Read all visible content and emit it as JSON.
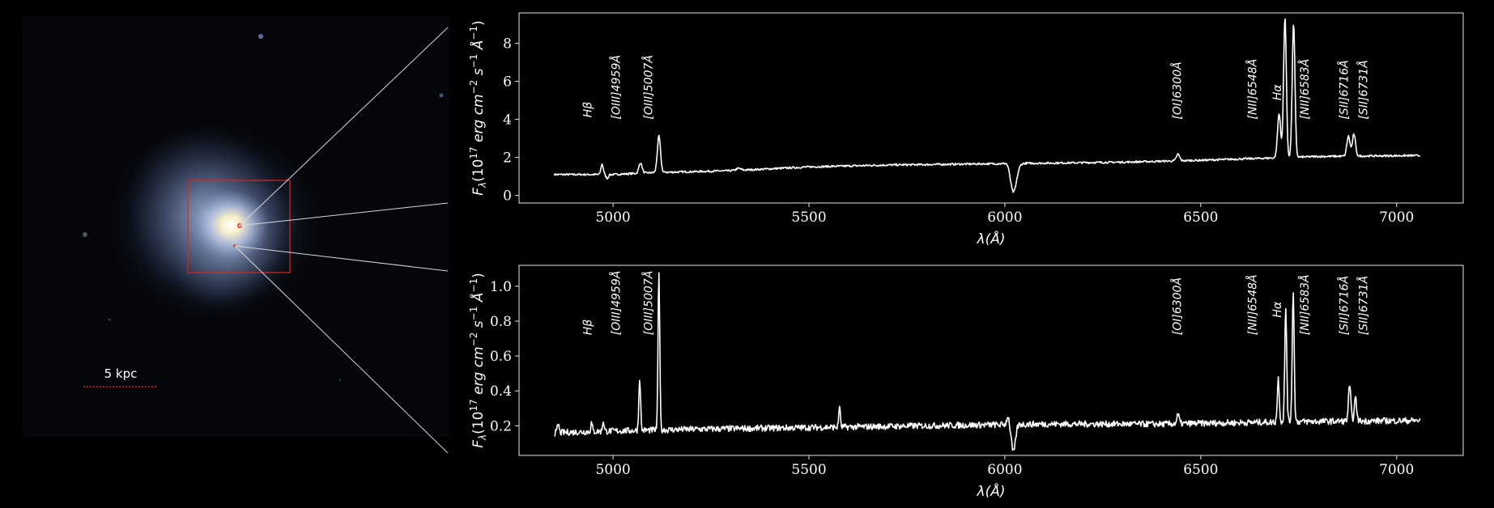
{
  "image_panel": {
    "scale_bar_label": "5 kpc",
    "marker_color": "#e0241c"
  },
  "chart_data": [
    {
      "type": "line",
      "xlabel": "λ(Å)",
      "ylabel_main": "F",
      "ylabel_sub": "λ",
      "ylabel_rest": "(10",
      "ylabel_exp": "17",
      "ylabel_units": " erg cm",
      "ylabel_units_exp1": "−2",
      "ylabel_units2": " s",
      "ylabel_units_exp2": "−1",
      "ylabel_units3": " Å",
      "ylabel_units_exp3": "−1",
      "ylabel_close": ")",
      "xlim": [
        4760,
        7170
      ],
      "ylim": [
        -0.4,
        9.6
      ],
      "xticks": [
        5000,
        5500,
        6000,
        6500,
        7000
      ],
      "yticks": [
        0,
        2,
        4,
        6,
        8
      ],
      "ytick_labels": [
        "0",
        "2",
        "4",
        "6",
        "8"
      ],
      "grid": false,
      "line_labels": [
        {
          "label": "Hβ",
          "x": 4945,
          "y": 4.1
        },
        {
          "label": "[OIII]4959Å",
          "x": 5017,
          "y": 4.0
        },
        {
          "label": "[OIII]5007Å",
          "x": 5100,
          "y": 4.0
        },
        {
          "label": "[OI]6300Å",
          "x": 6450,
          "y": 4.0
        },
        {
          "label": "[NII]6548Å",
          "x": 6642,
          "y": 4.0
        },
        {
          "label": "Hα",
          "x": 6705,
          "y": 5.0
        },
        {
          "label": "[NII]6583Å",
          "x": 6775,
          "y": 4.0
        },
        {
          "label": "[SII]6716Å",
          "x": 6875,
          "y": 4.0
        },
        {
          "label": "[SII]6731Å",
          "x": 6925,
          "y": 4.0
        }
      ],
      "series": [
        {
          "color": "#ffffff",
          "baseline": [
            [
              4850,
              1.1
            ],
            [
              5000,
              1.1
            ],
            [
              5100,
              1.2
            ],
            [
              5300,
              1.3
            ],
            [
              5500,
              1.5
            ],
            [
              5700,
              1.6
            ],
            [
              5900,
              1.65
            ],
            [
              6100,
              1.7
            ],
            [
              6300,
              1.75
            ],
            [
              6500,
              1.85
            ],
            [
              6650,
              1.95
            ],
            [
              6800,
              2.05
            ],
            [
              7060,
              2.1
            ]
          ],
          "features": [
            {
              "x": 4972,
              "peak": 0.55,
              "width": 3
            },
            {
              "x": 4985,
              "peak": -0.2,
              "width": 3
            },
            {
              "x": 5070,
              "peak": 0.55,
              "width": 4
            },
            {
              "x": 5117,
              "peak": 1.9,
              "width": 4
            },
            {
              "x": 5320,
              "peak": 0.1,
              "width": 6
            },
            {
              "x": 6022,
              "peak": -1.5,
              "width": 8
            },
            {
              "x": 6008,
              "peak": 0.15,
              "width": 5
            },
            {
              "x": 6442,
              "peak": 0.35,
              "width": 4
            },
            {
              "x": 6700,
              "peak": 2.3,
              "width": 4
            },
            {
              "x": 6715,
              "peak": 7.4,
              "width": 3.5
            },
            {
              "x": 6737,
              "peak": 7.0,
              "width": 3.5
            },
            {
              "x": 6877,
              "peak": 1.05,
              "width": 4
            },
            {
              "x": 6891,
              "peak": 1.15,
              "width": 4
            }
          ],
          "noise": 0.05
        }
      ]
    },
    {
      "type": "line",
      "xlabel": "λ(Å)",
      "ylabel_main": "F",
      "ylabel_sub": "λ",
      "ylabel_rest": "(10",
      "ylabel_exp": "17",
      "ylabel_units": " erg cm",
      "ylabel_units_exp1": "−2",
      "ylabel_units2": " s",
      "ylabel_units_exp2": "−1",
      "ylabel_units3": " Å",
      "ylabel_units_exp3": "−1",
      "ylabel_close": ")",
      "xlim": [
        4760,
        7170
      ],
      "ylim": [
        0.03,
        1.12
      ],
      "xticks": [
        5000,
        5500,
        6000,
        6500,
        7000
      ],
      "yticks": [
        0.2,
        0.4,
        0.6,
        0.8,
        1.0
      ],
      "ytick_labels": [
        "0.2",
        "0.4",
        "0.6",
        "0.8",
        "1.0"
      ],
      "grid": false,
      "line_labels": [
        {
          "label": "Hβ",
          "x": 4945,
          "y": 0.72
        },
        {
          "label": "[OIII]4959Å",
          "x": 5017,
          "y": 0.72
        },
        {
          "label": "[OIII]5007Å",
          "x": 5100,
          "y": 0.72
        },
        {
          "label": "[OI]6300Å",
          "x": 6450,
          "y": 0.72
        },
        {
          "label": "[NII]6548Å",
          "x": 6642,
          "y": 0.72
        },
        {
          "label": "Hα",
          "x": 6705,
          "y": 0.82
        },
        {
          "label": "[NII]6583Å",
          "x": 6775,
          "y": 0.72
        },
        {
          "label": "[SII]6716Å",
          "x": 6875,
          "y": 0.72
        },
        {
          "label": "[SII]6731Å",
          "x": 6925,
          "y": 0.72
        }
      ],
      "series": [
        {
          "color": "#ffffff",
          "baseline": [
            [
              4850,
              0.16
            ],
            [
              5000,
              0.17
            ],
            [
              5200,
              0.18
            ],
            [
              5500,
              0.19
            ],
            [
              5800,
              0.2
            ],
            [
              6100,
              0.21
            ],
            [
              6400,
              0.21
            ],
            [
              6650,
              0.22
            ],
            [
              6800,
              0.225
            ],
            [
              7060,
              0.23
            ]
          ],
          "features": [
            {
              "x": 4860,
              "peak": 0.05,
              "width": 2
            },
            {
              "x": 4945,
              "peak": 0.05,
              "width": 2
            },
            {
              "x": 4975,
              "peak": 0.06,
              "width": 2
            },
            {
              "x": 5068,
              "peak": 0.3,
              "width": 2.2
            },
            {
              "x": 5117,
              "peak": 0.9,
              "width": 2.2
            },
            {
              "x": 5578,
              "peak": 0.13,
              "width": 1.8
            },
            {
              "x": 6022,
              "peak": -0.16,
              "width": 5
            },
            {
              "x": 6008,
              "peak": 0.05,
              "width": 3
            },
            {
              "x": 6442,
              "peak": 0.05,
              "width": 3
            },
            {
              "x": 6698,
              "peak": 0.25,
              "width": 2.5
            },
            {
              "x": 6717,
              "peak": 0.65,
              "width": 2.5
            },
            {
              "x": 6736,
              "peak": 0.74,
              "width": 2.5
            },
            {
              "x": 6880,
              "peak": 0.2,
              "width": 3
            },
            {
              "x": 6895,
              "peak": 0.13,
              "width": 3
            }
          ],
          "noise": 0.018
        }
      ]
    }
  ]
}
